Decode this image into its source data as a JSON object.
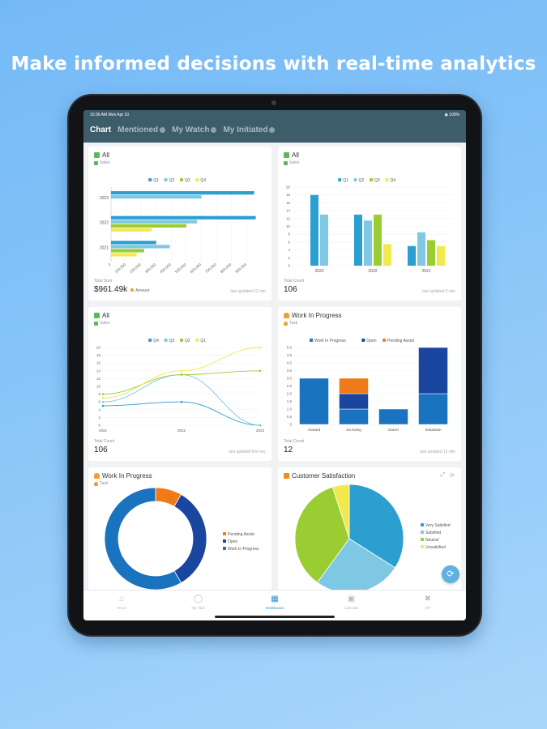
{
  "headline": "Make informed decisions with real-time analytics",
  "status_bar": {
    "time_date": "10:36 AM  Mon Apr 10",
    "battery": "100%"
  },
  "tabs": [
    {
      "label": "Chart",
      "active": true
    },
    {
      "label": "Mentioned",
      "active": false
    },
    {
      "label": "My Watch",
      "active": false
    },
    {
      "label": "My Initiated",
      "active": false
    }
  ],
  "colors": {
    "q1": "#2a9fd0",
    "q2": "#7ec8e3",
    "q3": "#9acd32",
    "q4": "#f2e94e",
    "wip": "#1a73bf",
    "open": "#1a46a0",
    "pending": "#f07a1a",
    "header": "#3d5d6b"
  },
  "cards": {
    "c1": {
      "title": "All",
      "sub": "Sales",
      "total_label": "Total Sum",
      "total_value": "$961.49k",
      "amount_label": "Amount",
      "updated": "last updated 12 min"
    },
    "c2": {
      "title": "All",
      "sub": "Sales",
      "total_label": "Total Count",
      "total_value": "106",
      "updated": "last updated 2 min"
    },
    "c3": {
      "title": "All",
      "sub": "Sales",
      "total_label": "Total Count",
      "total_value": "106",
      "updated": "last updated few sec"
    },
    "c4": {
      "title": "Work In Progress",
      "sub": "Task",
      "total_label": "Total Count",
      "total_value": "12",
      "updated": "last updated 12 min"
    },
    "c5": {
      "title": "Work In Progress",
      "sub": "Task"
    },
    "c6": {
      "title": "Customer Satisfaction"
    }
  },
  "bottom_nav": [
    {
      "label": "Home",
      "icon": "home-icon",
      "active": false
    },
    {
      "label": "My Task",
      "icon": "task-icon",
      "active": false
    },
    {
      "label": "Dashboard",
      "icon": "dashboard-icon",
      "active": true
    },
    {
      "label": "Calendar",
      "icon": "calendar-icon",
      "active": false
    },
    {
      "label": "DP",
      "icon": "tools-icon",
      "active": false
    }
  ],
  "chart_data": [
    {
      "type": "bar",
      "orientation": "horizontal",
      "categories": [
        "2023",
        "2022",
        "2021"
      ],
      "series": [
        {
          "name": "Q1",
          "values": [
            950,
            960,
            300
          ]
        },
        {
          "name": "Q2",
          "values": [
            600,
            570,
            390
          ]
        },
        {
          "name": "Q3",
          "values": [
            0,
            500,
            220
          ]
        },
        {
          "name": "Q4",
          "values": [
            0,
            270,
            170
          ]
        }
      ],
      "xticks": [
        "0",
        "100,000",
        "200,000",
        "300,000",
        "400,000",
        "500,000",
        "600,000",
        "700,000",
        "800,000",
        "900,000"
      ],
      "xlim": [
        0,
        1000
      ]
    },
    {
      "type": "bar",
      "categories": [
        "2023",
        "2022",
        "2021"
      ],
      "series": [
        {
          "name": "Q1",
          "values": [
            18,
            13,
            5
          ]
        },
        {
          "name": "Q2",
          "values": [
            13,
            11.5,
            8.5
          ]
        },
        {
          "name": "Q3",
          "values": [
            0,
            13,
            6.5
          ]
        },
        {
          "name": "Q4",
          "values": [
            0,
            5.5,
            5
          ]
        }
      ],
      "yticks": [
        "0",
        "2",
        "4",
        "6",
        "8",
        "10",
        "12",
        "14",
        "16",
        "18",
        "20"
      ],
      "ylim": [
        0,
        20
      ]
    },
    {
      "type": "line",
      "categories": [
        "2021",
        "2022",
        "2023"
      ],
      "series": [
        {
          "name": "Q4",
          "values": [
            5,
            6,
            0
          ]
        },
        {
          "name": "Q3",
          "values": [
            6,
            13,
            0
          ]
        },
        {
          "name": "Q2",
          "values": [
            8,
            13,
            14
          ]
        },
        {
          "name": "Q1",
          "values": [
            7,
            14,
            20
          ]
        }
      ],
      "yticks": [
        "0",
        "2",
        "4",
        "6",
        "8",
        "10",
        "12",
        "14",
        "16",
        "18",
        "20"
      ],
      "ylim": [
        0,
        20
      ]
    },
    {
      "type": "bar",
      "stacked": true,
      "categories": [
        "Howard",
        "Jiu Kiang",
        "Daniel",
        "Sebastian"
      ],
      "series": [
        {
          "name": "Work In Progress",
          "values": [
            3,
            1,
            1,
            2
          ]
        },
        {
          "name": "Open",
          "values": [
            0,
            1,
            0,
            3
          ]
        },
        {
          "name": "Pending Assist",
          "values": [
            0,
            1,
            0,
            0
          ]
        }
      ],
      "yticks": [
        "0",
        "0.5",
        "1.0",
        "1.5",
        "2.0",
        "2.5",
        "3.0",
        "3.5",
        "4.0",
        "4.5",
        "5.0"
      ],
      "ylim": [
        0,
        5
      ]
    },
    {
      "type": "pie",
      "donut": true,
      "series": [
        {
          "name": "Pending Assist",
          "value": 1
        },
        {
          "name": "Open",
          "value": 4
        },
        {
          "name": "Work In Progress",
          "value": 7
        }
      ]
    },
    {
      "type": "pie",
      "series": [
        {
          "name": "Very Satisfied",
          "value": 34
        },
        {
          "name": "Satisfied",
          "value": 26
        },
        {
          "name": "Neutral",
          "value": 35
        },
        {
          "name": "Unsatisfied",
          "value": 5
        }
      ]
    }
  ]
}
